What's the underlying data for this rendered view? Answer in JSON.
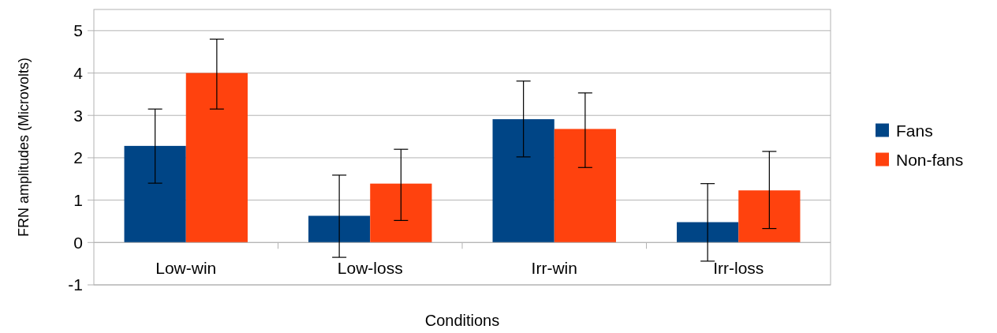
{
  "chart_data": {
    "type": "bar",
    "xlabel": "Conditions",
    "ylabel": "FRN amplitudes (Microvolts)",
    "categories": [
      "Low-win",
      "Low-loss",
      "Irr-win",
      "Irr-loss"
    ],
    "series": [
      {
        "name": "Fans",
        "color": "#004586",
        "values": [
          2.28,
          0.63,
          2.91,
          0.48
        ],
        "errors": [
          [
            1.4,
            3.15
          ],
          [
            -0.35,
            1.59
          ],
          [
            2.02,
            3.81
          ],
          [
            -0.44,
            1.39
          ]
        ]
      },
      {
        "name": "Non-fans",
        "color": "#ff420e",
        "values": [
          4.0,
          1.39,
          2.68,
          1.23
        ],
        "errors": [
          [
            3.15,
            4.8
          ],
          [
            0.52,
            2.2
          ],
          [
            1.77,
            3.53
          ],
          [
            0.33,
            2.15
          ]
        ]
      }
    ],
    "ylim": [
      -1,
      5.5
    ],
    "yticks": [
      -1,
      0,
      1,
      2,
      3,
      4,
      5
    ],
    "grid": "y",
    "legend": "right"
  }
}
